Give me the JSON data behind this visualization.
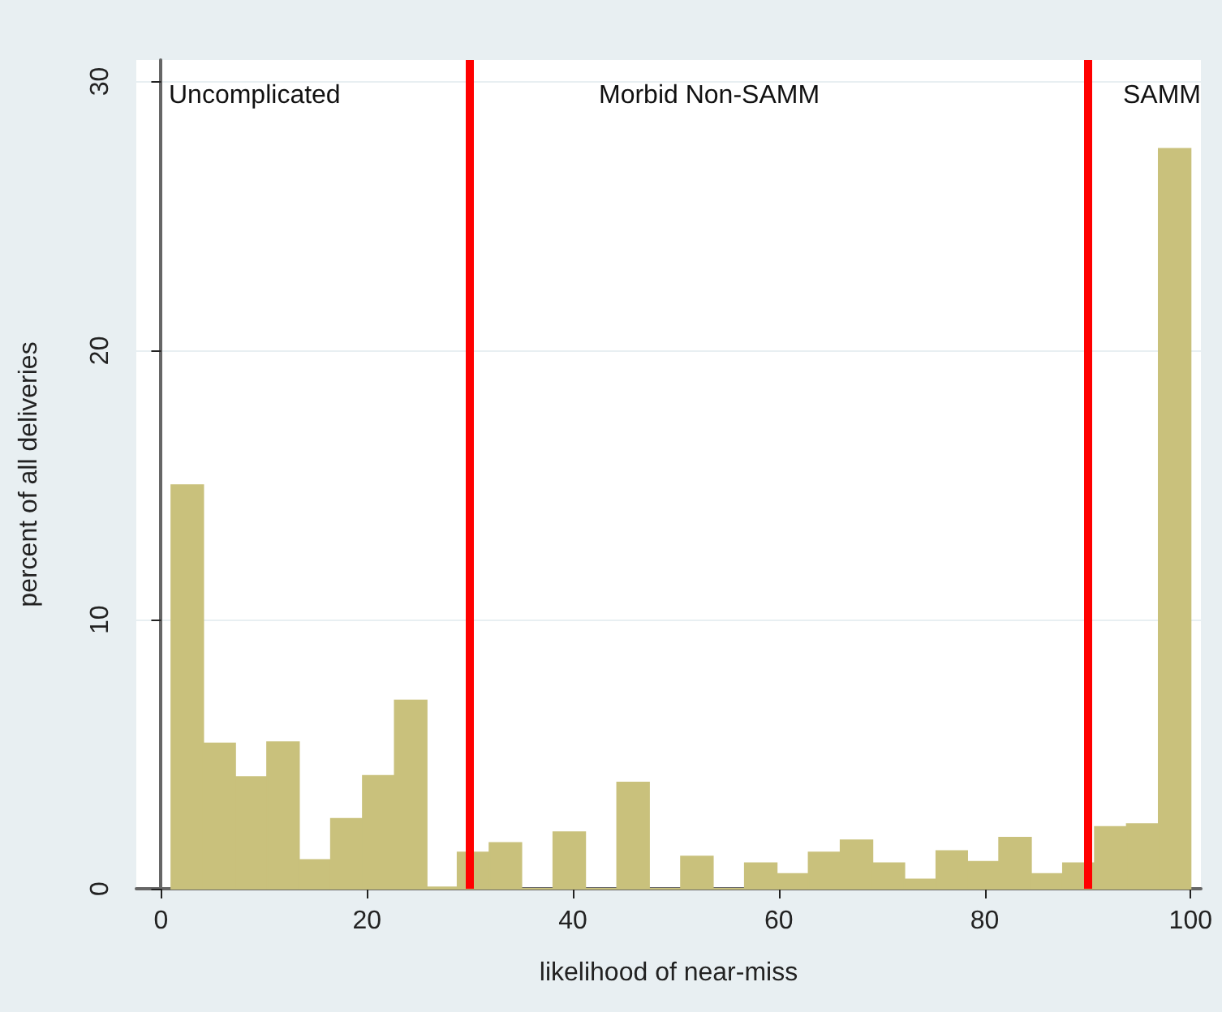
{
  "chart_data": {
    "type": "histogram",
    "xlabel": "likelihood of near-miss",
    "ylabel": "percent of all deliveries",
    "bins": [
      1,
      4.1,
      7.2,
      10.3,
      13.4,
      16.5,
      19.6,
      22.7,
      25.8,
      28.8,
      31.9,
      35.0,
      38.1,
      41.2,
      44.3,
      47.4,
      50.5,
      53.6,
      56.7,
      59.8,
      62.9,
      66.0,
      69.1,
      72.2,
      75.3,
      78.3,
      81.4,
      84.5,
      87.6,
      90.7,
      93.8,
      96.9,
      100
    ],
    "values": [
      15.0,
      5.4,
      4.15,
      5.45,
      1.07,
      2.6,
      4.2,
      7.0,
      0.05,
      1.35,
      1.7,
      0,
      2.1,
      0,
      3.95,
      0,
      1.2,
      0,
      0.95,
      0.55,
      1.35,
      1.8,
      0.95,
      0.35,
      1.4,
      1.0,
      1.9,
      0.55,
      0.95,
      2.3,
      2.4,
      27.5
    ],
    "color": "#c9c17c",
    "xlim": [
      -2.4,
      101
    ],
    "ylim": [
      0,
      30.8
    ],
    "xticks": [
      0,
      20,
      40,
      60,
      80,
      100
    ],
    "yticks": [
      0,
      10,
      20,
      30
    ],
    "grid": "y",
    "ref_lines": [
      {
        "axis": "x",
        "value": 30,
        "color": "#ff0000"
      },
      {
        "axis": "x",
        "value": 90,
        "color": "#ff0000"
      }
    ],
    "annotations": [
      "Uncomplicated",
      "Morbid Non-SAMM",
      "SAMM"
    ]
  }
}
